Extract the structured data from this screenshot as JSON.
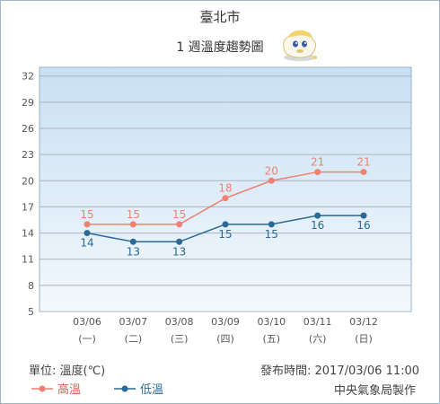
{
  "title": "臺北市",
  "subtitle": "1 週溫度趨勢圖",
  "footer": {
    "unit": "單位: 溫度(℃)",
    "issued": "發布時間: 2017/03/06 11:00",
    "maker": "中央氣象局製作"
  },
  "colors": {
    "high": "#f08070",
    "low": "#2a6a96",
    "plot_top": "#c9e0f3",
    "plot_bottom": "#f3f8fd",
    "axis_text": "#555555"
  },
  "mascot_icon": "weather-mascot-icon",
  "chart_data": {
    "type": "line",
    "categories": [
      "03/06",
      "03/07",
      "03/08",
      "03/09",
      "03/10",
      "03/11",
      "03/12"
    ],
    "category_sub": [
      "(一)",
      "(二)",
      "(三)",
      "(四)",
      "(五)",
      "(六)",
      "(日)"
    ],
    "yticks": [
      5,
      8,
      11,
      14,
      17,
      20,
      23,
      26,
      29,
      32
    ],
    "ylim": [
      5,
      33
    ],
    "grid": true,
    "legend": "bottom-left",
    "series": [
      {
        "name": "高溫",
        "key": "high",
        "values": [
          15,
          15,
          15,
          18,
          20,
          21,
          21
        ]
      },
      {
        "name": "低溫",
        "key": "low",
        "values": [
          14,
          13,
          13,
          15,
          15,
          16,
          16
        ]
      }
    ]
  }
}
